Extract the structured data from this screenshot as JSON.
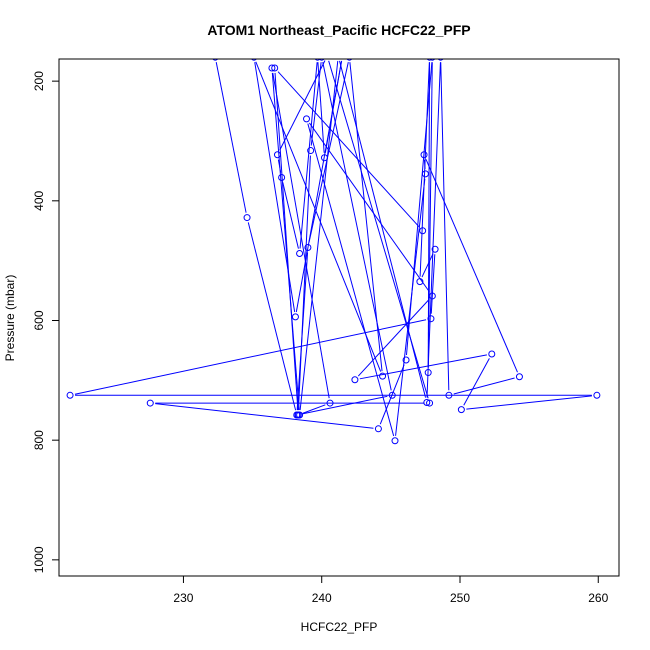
{
  "chart_data": {
    "type": "line",
    "title": "ATOM1 Northeast_Pacific HCFC22_PFP",
    "xlabel": "HCFC22_PFP",
    "ylabel": "Pressure (mbar)",
    "xlim": [
      221,
      261.5
    ],
    "ylim": [
      1027,
      163
    ],
    "y_reversed": true,
    "x_ticks": [
      230,
      240,
      250,
      260
    ],
    "y_ticks": [
      200,
      400,
      600,
      800,
      1000
    ],
    "grid": false,
    "series_color": "#0000ff",
    "marker": "open-circle",
    "series": [
      {
        "x": [
          232.3,
          234.6,
          238.2,
          238.3,
          240.6,
          236.4,
          238.4,
          241.2,
          247.6,
          248.6,
          249.2,
          254.3,
          247.4,
          247.5,
          245.3,
          238.9,
          248.0,
          242.4,
          252.3,
          250.1,
          259.9,
          221.8,
          247.9,
          248.2,
          247.1,
          247.8,
          247.7,
          248.0,
          246.1,
          244.1,
          227.6,
          247.8,
          240.4,
          236.8,
          237.1,
          238.4,
          239.7,
          240.2,
          241.5,
          238.1,
          235.1,
          244.4,
          242.0,
          239.0,
          238.2,
          245.1,
          240.0,
          239.2,
          238.3,
          236.6,
          247.3
        ],
        "y": [
          160,
          428,
          758,
          758,
          738,
          178,
          758,
          158,
          737,
          160,
          725,
          694,
          323,
          355,
          801,
          263,
          559,
          699,
          656,
          749,
          725,
          725,
          597,
          481,
          535,
          160,
          687,
          160,
          666,
          781,
          738,
          738,
          158,
          323,
          361,
          488,
          160,
          328,
          158,
          594,
          160,
          693,
          160,
          478,
          758,
          725,
          160,
          316,
          758,
          178,
          450
        ]
      }
    ]
  }
}
